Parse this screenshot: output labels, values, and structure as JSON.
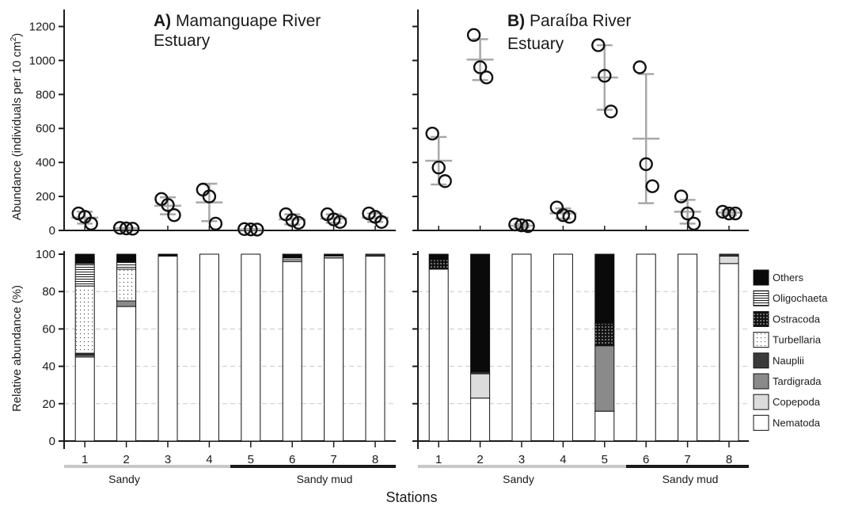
{
  "figure": {
    "ylabel_top_prefix": "Abundance (individuals per 10 cm",
    "ylabel_top_sup": "2",
    "ylabel_top_suffix": ")",
    "ylabel_bottom": "Relative abundance (%)",
    "xlabel": "Stations",
    "group_sandy": "Sandy",
    "group_sandymud": "Sandy mud"
  },
  "chart_data": [
    {
      "panel": "A-top",
      "type": "scatter",
      "title_bold": "A)",
      "title_line1": "Mamanguape River",
      "title_line2": "Estuary",
      "ylim": [
        0,
        1300
      ],
      "yticks": [
        0,
        200,
        400,
        600,
        800,
        1000,
        1200
      ],
      "categories": [
        "1",
        "2",
        "3",
        "4",
        "5",
        "6",
        "7",
        "8"
      ],
      "points": [
        [
          100,
          80,
          40
        ],
        [
          15,
          12,
          10
        ],
        [
          185,
          150,
          90
        ],
        [
          240,
          200,
          40
        ],
        [
          8,
          6,
          5
        ],
        [
          95,
          60,
          45
        ],
        [
          95,
          65,
          50
        ],
        [
          100,
          80,
          50
        ]
      ],
      "means": [
        75,
        12,
        145,
        165,
        6,
        65,
        70,
        75
      ],
      "sd": [
        35,
        3,
        50,
        110,
        2,
        30,
        25,
        25
      ]
    },
    {
      "panel": "B-top",
      "type": "scatter",
      "title_bold": "B)",
      "title_line1": "Paraíba River",
      "title_line2": "Estuary",
      "ylim": [
        0,
        1300
      ],
      "yticks": [
        0,
        200,
        400,
        600,
        800,
        1000,
        1200
      ],
      "categories": [
        "1",
        "2",
        "3",
        "4",
        "5",
        "6",
        "7",
        "8"
      ],
      "points": [
        [
          570,
          370,
          290
        ],
        [
          1150,
          960,
          900
        ],
        [
          35,
          30,
          25
        ],
        [
          135,
          90,
          80
        ],
        [
          1090,
          910,
          700
        ],
        [
          960,
          390,
          260
        ],
        [
          200,
          100,
          40
        ],
        [
          110,
          100,
          100
        ]
      ],
      "means": [
        410,
        1005,
        28,
        100,
        900,
        540,
        110,
        105
      ],
      "sd": [
        140,
        120,
        10,
        30,
        190,
        380,
        70,
        15
      ]
    },
    {
      "panel": "A-bottom",
      "type": "bar",
      "ylim": [
        0,
        100
      ],
      "yticks": [
        0,
        20,
        40,
        60,
        80,
        100
      ],
      "categories": [
        "1",
        "2",
        "3",
        "4",
        "5",
        "6",
        "7",
        "8"
      ],
      "series": [
        {
          "name": "Nematoda",
          "values": [
            45,
            72,
            99,
            100,
            100,
            96,
            98,
            99
          ]
        },
        {
          "name": "Copepoda",
          "values": [
            0,
            0,
            0,
            0,
            0,
            1,
            0,
            0
          ]
        },
        {
          "name": "Tardigrada",
          "values": [
            1,
            3,
            0,
            0,
            0,
            0,
            0,
            0
          ]
        },
        {
          "name": "Nauplii",
          "values": [
            1,
            0,
            0,
            0,
            0,
            0,
            0,
            1
          ]
        },
        {
          "name": "Turbellaria",
          "values": [
            36,
            17,
            0,
            0,
            0,
            0,
            0,
            0
          ]
        },
        {
          "name": "Ostracoda",
          "values": [
            0,
            0,
            0,
            0,
            0,
            0,
            0,
            0
          ]
        },
        {
          "name": "Oligochaeta",
          "values": [
            12,
            4,
            0,
            0,
            0,
            1,
            1,
            0
          ]
        },
        {
          "name": "Others",
          "values": [
            5,
            4,
            1,
            0,
            0,
            2,
            1,
            0
          ]
        }
      ]
    },
    {
      "panel": "B-bottom",
      "type": "bar",
      "ylim": [
        0,
        100
      ],
      "yticks": [
        0,
        20,
        40,
        60,
        80,
        100
      ],
      "categories": [
        "1",
        "2",
        "3",
        "4",
        "5",
        "6",
        "7",
        "8"
      ],
      "series": [
        {
          "name": "Nematoda",
          "values": [
            92,
            23,
            100,
            100,
            16,
            100,
            100,
            95
          ]
        },
        {
          "name": "Copepoda",
          "values": [
            0,
            13,
            0,
            0,
            0,
            0,
            0,
            4
          ]
        },
        {
          "name": "Tardigrada",
          "values": [
            0,
            0,
            0,
            0,
            35,
            0,
            0,
            0
          ]
        },
        {
          "name": "Nauplii",
          "values": [
            0,
            1,
            0,
            0,
            0,
            0,
            0,
            1
          ]
        },
        {
          "name": "Turbellaria",
          "values": [
            0,
            0,
            0,
            0,
            0,
            0,
            0,
            0
          ]
        },
        {
          "name": "Ostracoda",
          "values": [
            5,
            0,
            0,
            0,
            12,
            0,
            0,
            0
          ]
        },
        {
          "name": "Oligochaeta",
          "values": [
            0,
            0,
            0,
            0,
            0,
            0,
            0,
            0
          ]
        },
        {
          "name": "Others",
          "values": [
            3,
            63,
            0,
            0,
            37,
            0,
            0,
            0
          ]
        }
      ]
    }
  ],
  "legend": {
    "items": [
      {
        "name": "Others",
        "fill": "black"
      },
      {
        "name": "Oligochaeta",
        "fill": "hlines"
      },
      {
        "name": "Ostracoda",
        "fill": "dotsdark"
      },
      {
        "name": "Turbellaria",
        "fill": "dotslight"
      },
      {
        "name": "Nauplii",
        "fill": "#3a3a3a"
      },
      {
        "name": "Tardigrada",
        "fill": "#8a8a8a"
      },
      {
        "name": "Copepoda",
        "fill": "#dcdcdc"
      },
      {
        "name": "Nematoda",
        "fill": "#ffffff"
      }
    ]
  },
  "colors": {
    "axis": "#1a1a1a",
    "mean_bar": "#a8a8a8",
    "grid": "#c8c8c8",
    "sandy_bar": "#c8c8c8",
    "sandymud_bar": "#1a1a1a"
  }
}
